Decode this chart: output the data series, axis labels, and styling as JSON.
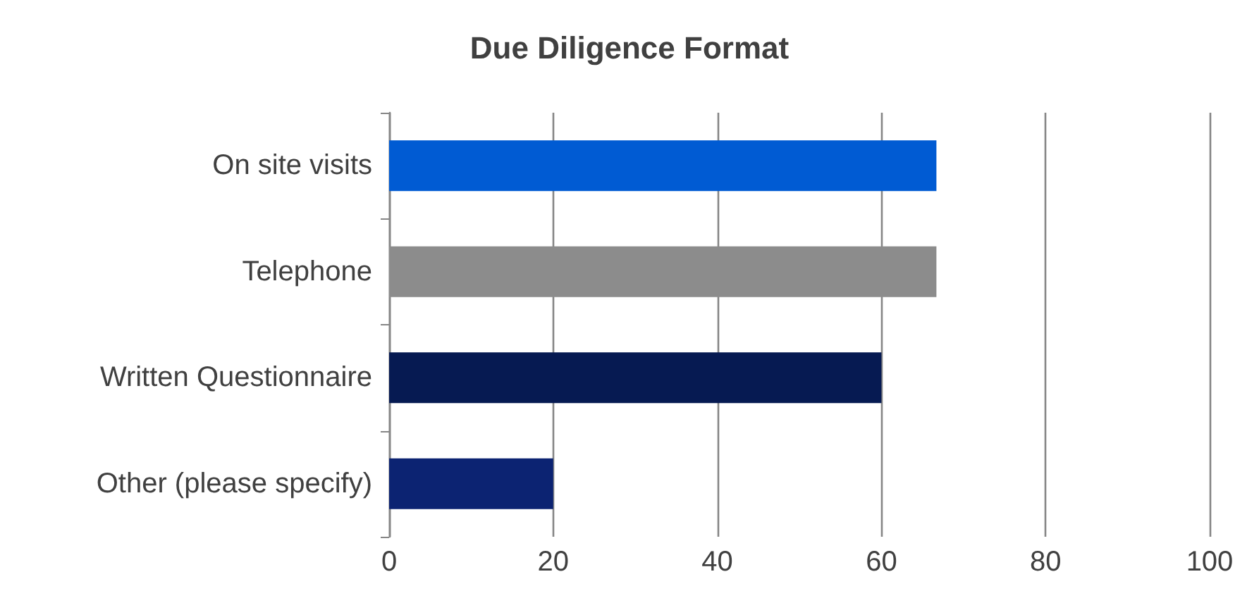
{
  "chart_data": {
    "type": "bar",
    "orientation": "horizontal",
    "title": "Due Diligence Format",
    "categories": [
      "On site visits",
      "Telephone",
      "Written Questionnaire",
      "Other (please specify)"
    ],
    "values": [
      66.7,
      66.7,
      60,
      20
    ],
    "colors": [
      "#005bd3",
      "#8c8c8c",
      "#061a52",
      "#0c2372"
    ],
    "xlim": [
      0,
      100
    ],
    "xticks": [
      0,
      20,
      40,
      60,
      80,
      100
    ],
    "grid": "x"
  }
}
